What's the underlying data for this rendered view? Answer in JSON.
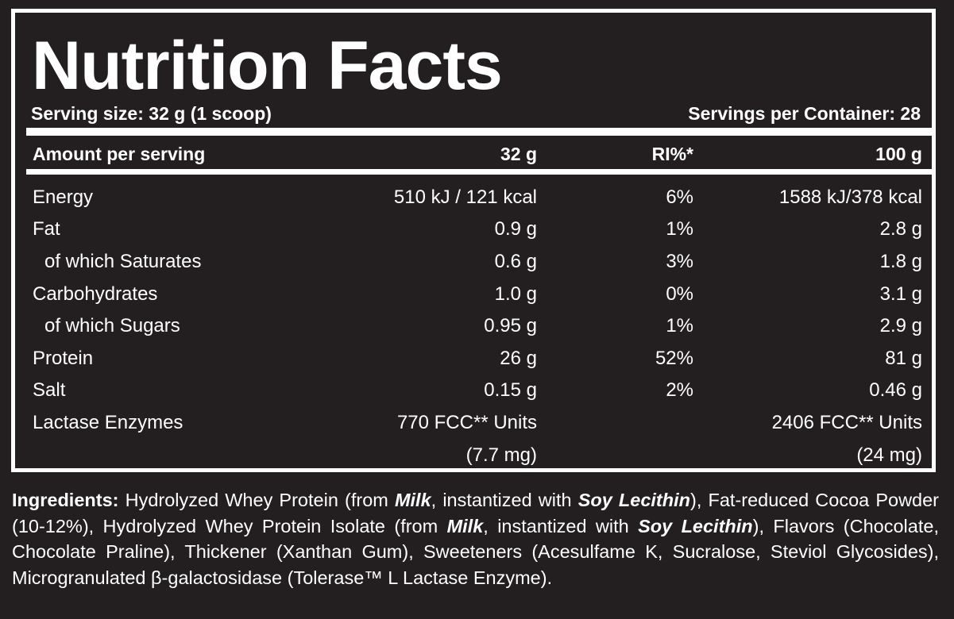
{
  "title": "Nutrition Facts",
  "serving_size": "Serving size: 32 g (1 scoop)",
  "servings_per_container": "Servings per Container: 28",
  "header": {
    "label": "Amount per serving",
    "col1": "32 g",
    "col2": "RI%*",
    "col3": "100 g"
  },
  "rows": [
    {
      "name": "Energy",
      "per_serving": "510 kJ / 121 kcal",
      "ri": "6%",
      "per_100g": "1588 kJ/378 kcal"
    },
    {
      "name": "Fat",
      "per_serving": "0.9 g",
      "ri": "1%",
      "per_100g": "2.8 g"
    },
    {
      "name": "of which Saturates",
      "per_serving": "0.6 g",
      "ri": "3%",
      "per_100g": "1.8 g"
    },
    {
      "name": "Carbohydrates",
      "per_serving": "1.0 g",
      "ri": "0%",
      "per_100g": "3.1 g"
    },
    {
      "name": "of which Sugars",
      "per_serving": "0.95 g",
      "ri": "1%",
      "per_100g": "2.9 g"
    },
    {
      "name": "Protein",
      "per_serving": "26 g",
      "ri": "52%",
      "per_100g": "81 g"
    },
    {
      "name": "Salt",
      "per_serving": "0.15 g",
      "ri": "2%",
      "per_100g": "0.46 g"
    },
    {
      "name": "Lactase Enzymes",
      "per_serving": "770 FCC** Units",
      "ri": "",
      "per_100g": "2406 FCC** Units"
    },
    {
      "name": "",
      "per_serving": "(7.7 mg)",
      "ri": "",
      "per_100g": "(24 mg)"
    }
  ],
  "ingredients": {
    "label": "Ingredients:",
    "segments": [
      {
        "text": " Hydrolyzed Whey Protein (from ",
        "allergen": false
      },
      {
        "text": "Milk",
        "allergen": true
      },
      {
        "text": ", instantized with ",
        "allergen": false
      },
      {
        "text": "Soy Lecithin",
        "allergen": true
      },
      {
        "text": "), Fat-reduced Cocoa Powder (10-12%), Hydrolyzed Whey Protein Isolate (from ",
        "allergen": false
      },
      {
        "text": "Milk",
        "allergen": true
      },
      {
        "text": ", instantized with ",
        "allergen": false
      },
      {
        "text": "Soy Lecithin",
        "allergen": true
      },
      {
        "text": "), Flavors (Chocolate, Chocolate Praline), Thickener (Xanthan Gum), Sweeteners (Acesulfame K, Sucralose, Steviol Glycosides), Microgranulated β-galactosidase (Tolerase™ L Lactase Enzyme).",
        "allergen": false
      }
    ]
  }
}
